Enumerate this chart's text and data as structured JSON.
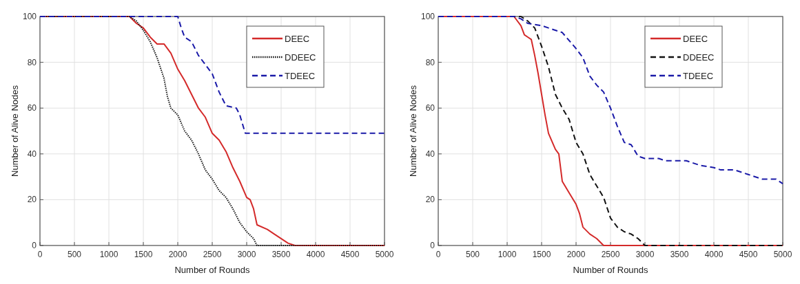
{
  "chart_data": [
    {
      "type": "line",
      "xlabel": "Number of Rounds",
      "ylabel": "Number of Alive Nodes",
      "xlim": [
        0,
        5000
      ],
      "ylim": [
        0,
        100
      ],
      "xticks": [
        0,
        500,
        1000,
        1500,
        2000,
        2500,
        3000,
        3500,
        4000,
        4500,
        5000
      ],
      "yticks": [
        0,
        20,
        40,
        60,
        80,
        100
      ],
      "grid": true,
      "legend": "top right",
      "series": [
        {
          "name": "DEEC",
          "color": "#d42a2a",
          "line_style": "solid",
          "x": [
            0,
            1300,
            1400,
            1500,
            1600,
            1700,
            1800,
            1900,
            2000,
            2100,
            2200,
            2300,
            2400,
            2500,
            2600,
            2700,
            2800,
            2900,
            3000,
            3050,
            3100,
            3150,
            3300,
            3400,
            3600,
            3700,
            5000
          ],
          "values": [
            100,
            100,
            97,
            95,
            91,
            88,
            88,
            84,
            77,
            72,
            66,
            60,
            56,
            49,
            46,
            41,
            34,
            28,
            21,
            20,
            16,
            9,
            7,
            5,
            1,
            0,
            0
          ]
        },
        {
          "name": "DDEEC",
          "color": "#111111",
          "line_style": "dotted",
          "x": [
            0,
            1300,
            1400,
            1500,
            1600,
            1700,
            1800,
            1850,
            1900,
            2000,
            2100,
            2200,
            2300,
            2400,
            2500,
            2600,
            2700,
            2800,
            2900,
            3000,
            3100,
            3150,
            5000
          ],
          "values": [
            100,
            100,
            98,
            94,
            89,
            82,
            73,
            65,
            60,
            57,
            50,
            46,
            40,
            33,
            29,
            24,
            21,
            16,
            10,
            6,
            3,
            0,
            0
          ]
        },
        {
          "name": "TDEEC",
          "color": "#1a1aa8",
          "line_style": "dashed",
          "x": [
            0,
            2000,
            2050,
            2100,
            2200,
            2300,
            2400,
            2500,
            2600,
            2700,
            2850,
            2900,
            2980,
            5000
          ],
          "values": [
            100,
            100,
            95,
            91,
            89,
            83,
            79,
            75,
            67,
            61,
            60,
            57,
            49,
            49
          ]
        }
      ]
    },
    {
      "type": "line",
      "xlabel": "Number of Rounds",
      "ylabel": "Number of Alive Nodes",
      "xlim": [
        0,
        5000
      ],
      "ylim": [
        0,
        100
      ],
      "xticks": [
        0,
        500,
        1000,
        1500,
        2000,
        2500,
        3000,
        3500,
        4000,
        4500,
        5000
      ],
      "yticks": [
        0,
        20,
        40,
        60,
        80,
        100
      ],
      "grid": true,
      "legend": "top right",
      "series": [
        {
          "name": "DEEC",
          "color": "#d42a2a",
          "line_style": "solid",
          "x": [
            0,
            1100,
            1200,
            1250,
            1300,
            1350,
            1400,
            1450,
            1500,
            1550,
            1600,
            1700,
            1750,
            1800,
            1900,
            2000,
            2050,
            2100,
            2200,
            2300,
            2400,
            5000
          ],
          "values": [
            100,
            100,
            96,
            92,
            91,
            90,
            83,
            75,
            66,
            57,
            49,
            42,
            40,
            28,
            23,
            18,
            14,
            8,
            5,
            3,
            0,
            0
          ]
        },
        {
          "name": "DDEEC",
          "color": "#111111",
          "line_style": "dashed",
          "x": [
            0,
            1200,
            1300,
            1400,
            1500,
            1600,
            1700,
            1800,
            1900,
            2000,
            2100,
            2200,
            2300,
            2400,
            2500,
            2600,
            2700,
            2800,
            2900,
            3000,
            5000
          ],
          "values": [
            100,
            100,
            98,
            95,
            87,
            78,
            66,
            60,
            55,
            45,
            40,
            31,
            26,
            21,
            12,
            8,
            6,
            5,
            3,
            0,
            0
          ]
        },
        {
          "name": "TDEEC",
          "color": "#1a1aa8",
          "line_style": "dashed",
          "x": [
            0,
            1100,
            1200,
            1300,
            1500,
            1600,
            1800,
            2000,
            2100,
            2200,
            2300,
            2400,
            2500,
            2600,
            2700,
            2800,
            2900,
            3000,
            3200,
            3300,
            3600,
            3700,
            3800,
            4000,
            4100,
            4300,
            4500,
            4700,
            4900,
            5000
          ],
          "values": [
            100,
            100,
            99,
            97,
            96,
            95,
            93,
            86,
            82,
            74,
            70,
            67,
            60,
            52,
            45,
            44,
            39,
            38,
            38,
            37,
            37,
            36,
            35,
            34,
            33,
            33,
            31,
            29,
            29,
            27
          ]
        }
      ]
    }
  ]
}
